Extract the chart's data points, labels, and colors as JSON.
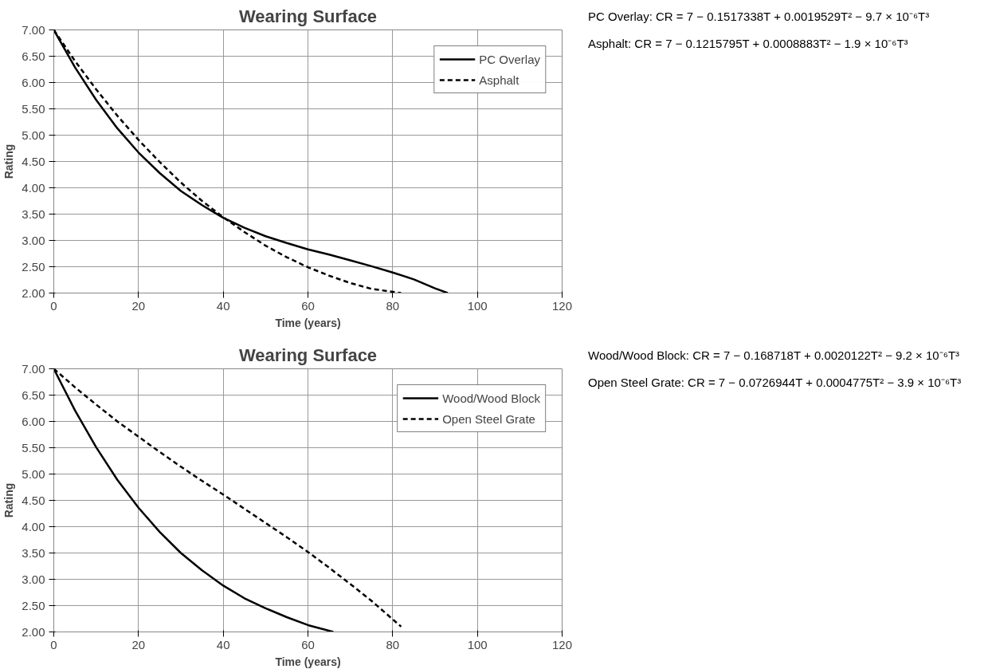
{
  "chart_data": [
    {
      "type": "line",
      "title": "Wearing Surface",
      "xlabel": "Time (years)",
      "ylabel": "Rating",
      "xlim": [
        0,
        120
      ],
      "xticks": [
        0,
        20,
        40,
        60,
        80,
        100,
        120
      ],
      "ylim": [
        2,
        7
      ],
      "yticks": [
        {
          "value": 2,
          "label": "2.00"
        },
        {
          "value": 2.5,
          "label": "2.50"
        },
        {
          "value": 3,
          "label": "3.00"
        },
        {
          "value": 3.5,
          "label": "3.50"
        },
        {
          "value": 4,
          "label": "4.00"
        },
        {
          "value": 4.5,
          "label": "4.50"
        },
        {
          "value": 5,
          "label": "5.00"
        },
        {
          "value": 5.5,
          "label": "5.50"
        },
        {
          "value": 6,
          "label": "6.00"
        },
        {
          "value": 6.5,
          "label": "6.50"
        },
        {
          "value": 7,
          "label": "7.00"
        }
      ],
      "grid": true,
      "legend": "top right",
      "x": [
        0,
        5,
        10,
        15,
        20,
        25,
        30,
        35,
        40,
        45,
        50,
        55,
        60,
        65,
        70,
        75,
        80,
        85,
        90,
        93
      ],
      "series": [
        {
          "name": "PC Overlay",
          "color": "#000000",
          "line_style": "solid",
          "values": [
            7.0,
            6.29,
            5.67,
            5.13,
            4.67,
            4.28,
            3.94,
            3.67,
            3.43,
            3.24,
            3.08,
            2.95,
            2.83,
            2.73,
            2.62,
            2.51,
            2.39,
            2.26,
            2.09,
            2.0
          ]
        },
        {
          "name": "Asphalt",
          "color": "#000000",
          "line_style": "dashed",
          "x": [
            0,
            5,
            10,
            15,
            20,
            25,
            30,
            35,
            40,
            45,
            50,
            55,
            60,
            65,
            70,
            75,
            82
          ],
          "values": [
            7.0,
            6.41,
            5.87,
            5.37,
            4.91,
            4.49,
            4.1,
            3.75,
            3.44,
            3.16,
            2.9,
            2.68,
            2.49,
            2.33,
            2.19,
            2.08,
            2.0
          ]
        }
      ],
      "annotations": [
        "PC Overlay: CR = 7 − 0.1517338T + 0.0019529T² − 9.7 × 10⁻⁶T³",
        "Asphalt: CR = 7 − 0.1215795T + 0.0008883T² − 1.9 × 10⁻⁶T³"
      ]
    },
    {
      "type": "line",
      "title": "Wearing Surface",
      "xlabel": "Time (years)",
      "ylabel": "Rating",
      "xlim": [
        0,
        120
      ],
      "xticks": [
        0,
        20,
        40,
        60,
        80,
        100,
        120
      ],
      "ylim": [
        2,
        7
      ],
      "yticks": [
        {
          "value": 2,
          "label": "2.00"
        },
        {
          "value": 2.5,
          "label": "2.50"
        },
        {
          "value": 3,
          "label": "3.00"
        },
        {
          "value": 3.5,
          "label": "3.50"
        },
        {
          "value": 4,
          "label": "4.00"
        },
        {
          "value": 4.5,
          "label": "4.50"
        },
        {
          "value": 5,
          "label": "5.00"
        },
        {
          "value": 5.5,
          "label": "5.50"
        },
        {
          "value": 6,
          "label": "6.00"
        },
        {
          "value": 6.5,
          "label": "6.50"
        },
        {
          "value": 7,
          "label": "7.00"
        }
      ],
      "grid": true,
      "legend": "top right",
      "x": [
        0,
        5,
        10,
        15,
        20,
        25,
        30,
        35,
        40,
        45,
        50,
        55,
        60,
        66
      ],
      "series": [
        {
          "name": "Wood/Wood Block",
          "color": "#000000",
          "line_style": "solid",
          "values": [
            7.0,
            6.21,
            5.51,
            4.89,
            4.36,
            3.9,
            3.5,
            3.17,
            2.88,
            2.64,
            2.45,
            2.28,
            2.13,
            2.0
          ]
        },
        {
          "name": "Open Steel Grate",
          "color": "#000000",
          "line_style": "dashed",
          "x": [
            0,
            5,
            10,
            15,
            20,
            25,
            30,
            35,
            40,
            45,
            50,
            55,
            60,
            65,
            70,
            75,
            80,
            82
          ],
          "values": [
            7.0,
            6.65,
            6.32,
            6.0,
            5.71,
            5.42,
            5.14,
            4.87,
            4.61,
            4.34,
            4.07,
            3.8,
            3.52,
            3.22,
            2.91,
            2.59,
            2.24,
            2.1
          ]
        }
      ],
      "annotations": [
        "Wood/Wood Block: CR = 7 − 0.168718T + 0.0020122T² − 9.2 × 10⁻⁶T³",
        "Open Steel Grate: CR = 7 − 0.0726944T + 0.0004775T² − 3.9 × 10⁻⁶T³"
      ]
    }
  ]
}
